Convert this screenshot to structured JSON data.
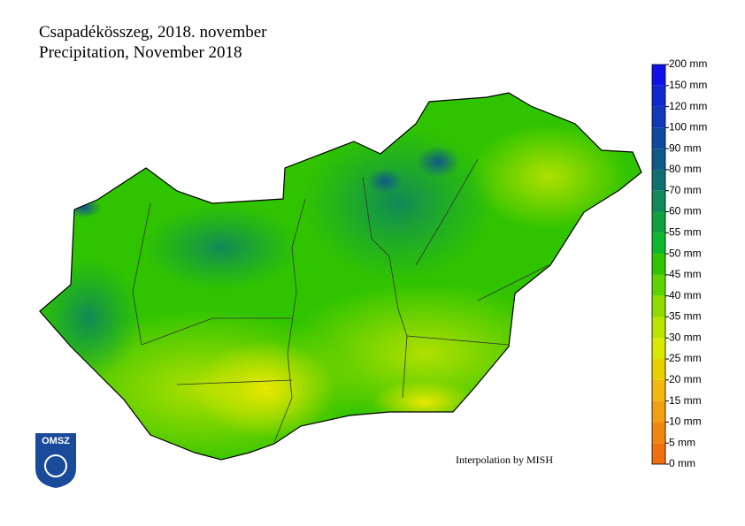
{
  "header": {
    "title": "Csapadékösszeg, 2018. november",
    "subtitle": "Precipitation, November 2018"
  },
  "credit": "Interpolation by MISH",
  "logo": "OMSZ",
  "legend": {
    "levels": [
      {
        "value": 0,
        "label": "0 mm"
      },
      {
        "value": 5,
        "label": "5 mm"
      },
      {
        "value": 10,
        "label": "10 mm"
      },
      {
        "value": 15,
        "label": "15 mm"
      },
      {
        "value": 20,
        "label": "20 mm"
      },
      {
        "value": 25,
        "label": "25 mm"
      },
      {
        "value": 30,
        "label": "30 mm"
      },
      {
        "value": 35,
        "label": "35 mm"
      },
      {
        "value": 40,
        "label": "40 mm"
      },
      {
        "value": 45,
        "label": "45 mm"
      },
      {
        "value": 50,
        "label": "50 mm"
      },
      {
        "value": 55,
        "label": "55 mm"
      },
      {
        "value": 60,
        "label": "60 mm"
      },
      {
        "value": 70,
        "label": "70 mm"
      },
      {
        "value": 80,
        "label": "80 mm"
      },
      {
        "value": 90,
        "label": "90 mm"
      },
      {
        "value": 100,
        "label": "100 mm"
      },
      {
        "value": 120,
        "label": "120 mm"
      },
      {
        "value": 150,
        "label": "150 mm"
      },
      {
        "value": 200,
        "label": "200 mm"
      }
    ],
    "colors": [
      "#f07010",
      "#f08810",
      "#f0a010",
      "#f0b810",
      "#e8d000",
      "#d8e800",
      "#b8e400",
      "#90dc00",
      "#60d400",
      "#30c400",
      "#10b830",
      "#10a040",
      "#108858",
      "#107070",
      "#105888",
      "#1048a0",
      "#1038b8",
      "#1028d0",
      "#1010e8"
    ]
  }
}
